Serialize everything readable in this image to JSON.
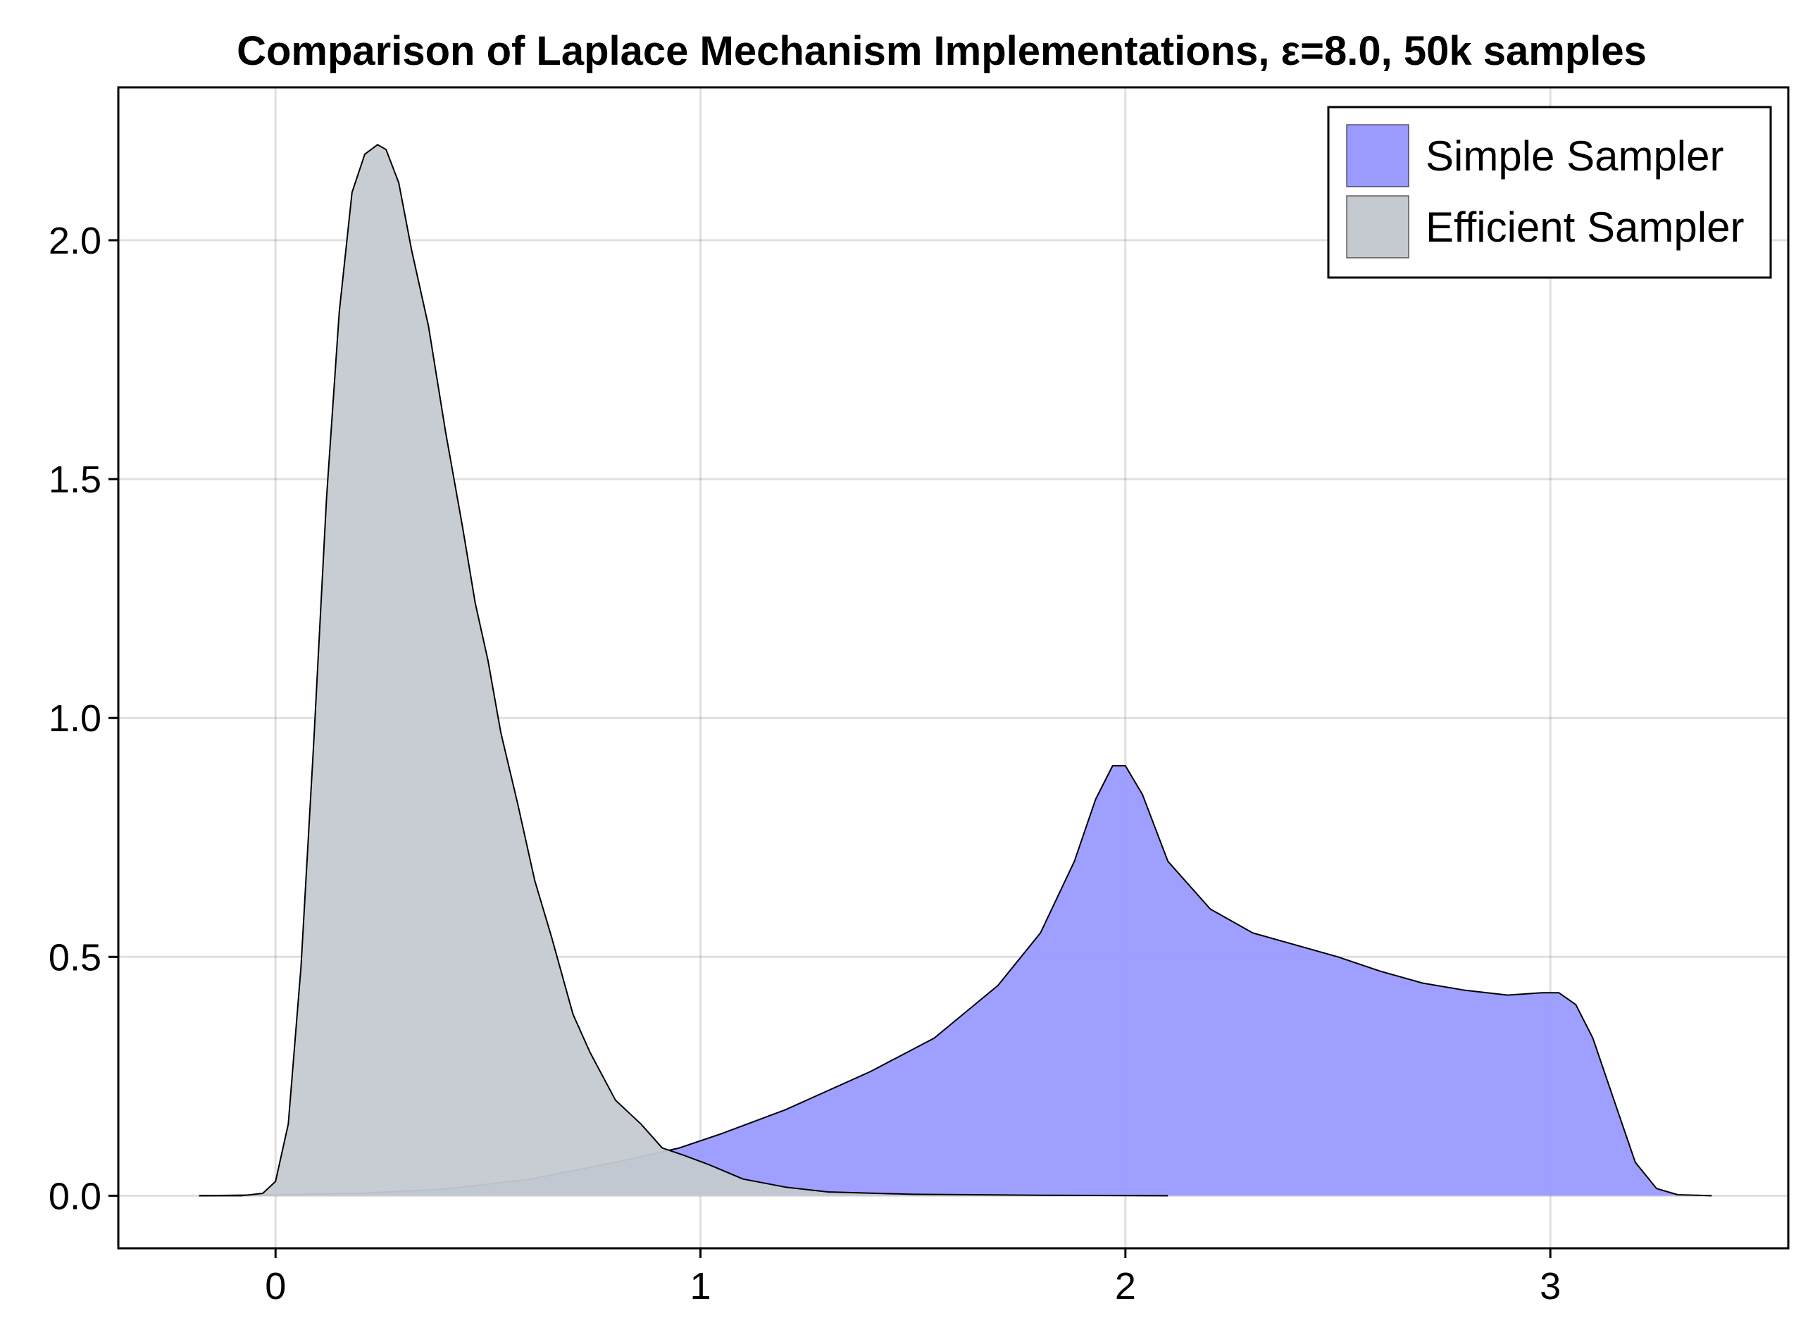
{
  "chart_data": {
    "type": "area",
    "title": "Comparison of Laplace Mechanism Implementations, ε=8.0, 50k samples",
    "xlabel": "",
    "ylabel": "",
    "xlim": [
      -0.37,
      3.56
    ],
    "ylim": [
      -0.11,
      2.32
    ],
    "x_ticks": [
      0,
      1,
      2,
      3
    ],
    "x_tick_labels": [
      "0",
      "1",
      "2",
      "3"
    ],
    "y_ticks": [
      0.0,
      0.5,
      1.0,
      1.5,
      2.0
    ],
    "y_tick_labels": [
      "0.0",
      "0.5",
      "1.0",
      "1.5",
      "2.0"
    ],
    "grid": true,
    "legend_position": "top-right",
    "series": [
      {
        "name": "Simple Sampler",
        "color": "#9a9aff",
        "x": [
          -0.18,
          0.0,
          0.2,
          0.4,
          0.6,
          0.8,
          0.95,
          1.05,
          1.2,
          1.4,
          1.55,
          1.7,
          1.8,
          1.88,
          1.93,
          1.97,
          2.0,
          2.04,
          2.1,
          2.2,
          2.3,
          2.5,
          2.6,
          2.7,
          2.8,
          2.9,
          2.98,
          3.02,
          3.06,
          3.1,
          3.15,
          3.2,
          3.25,
          3.3,
          3.38
        ],
        "y": [
          0.0,
          0.002,
          0.005,
          0.014,
          0.035,
          0.07,
          0.1,
          0.13,
          0.18,
          0.26,
          0.33,
          0.44,
          0.55,
          0.7,
          0.83,
          0.9,
          0.9,
          0.84,
          0.7,
          0.6,
          0.55,
          0.5,
          0.47,
          0.445,
          0.43,
          0.42,
          0.425,
          0.425,
          0.4,
          0.33,
          0.2,
          0.07,
          0.015,
          0.002,
          0.0
        ]
      },
      {
        "name": "Efficient Sampler",
        "color": "#c4cad0",
        "x": [
          -0.18,
          -0.08,
          -0.03,
          0.0,
          0.03,
          0.06,
          0.09,
          0.12,
          0.15,
          0.18,
          0.21,
          0.24,
          0.26,
          0.29,
          0.32,
          0.36,
          0.4,
          0.44,
          0.47,
          0.5,
          0.53,
          0.57,
          0.61,
          0.65,
          0.7,
          0.74,
          0.8,
          0.86,
          0.91,
          0.96,
          1.02,
          1.1,
          1.2,
          1.3,
          1.5,
          1.8,
          2.1
        ],
        "y": [
          0.0,
          0.0,
          0.005,
          0.03,
          0.15,
          0.48,
          0.95,
          1.46,
          1.85,
          2.1,
          2.18,
          2.2,
          2.19,
          2.12,
          1.98,
          1.82,
          1.6,
          1.4,
          1.24,
          1.12,
          0.97,
          0.82,
          0.66,
          0.54,
          0.38,
          0.3,
          0.2,
          0.15,
          0.1,
          0.085,
          0.065,
          0.035,
          0.018,
          0.008,
          0.003,
          0.001,
          0.0
        ]
      }
    ]
  }
}
